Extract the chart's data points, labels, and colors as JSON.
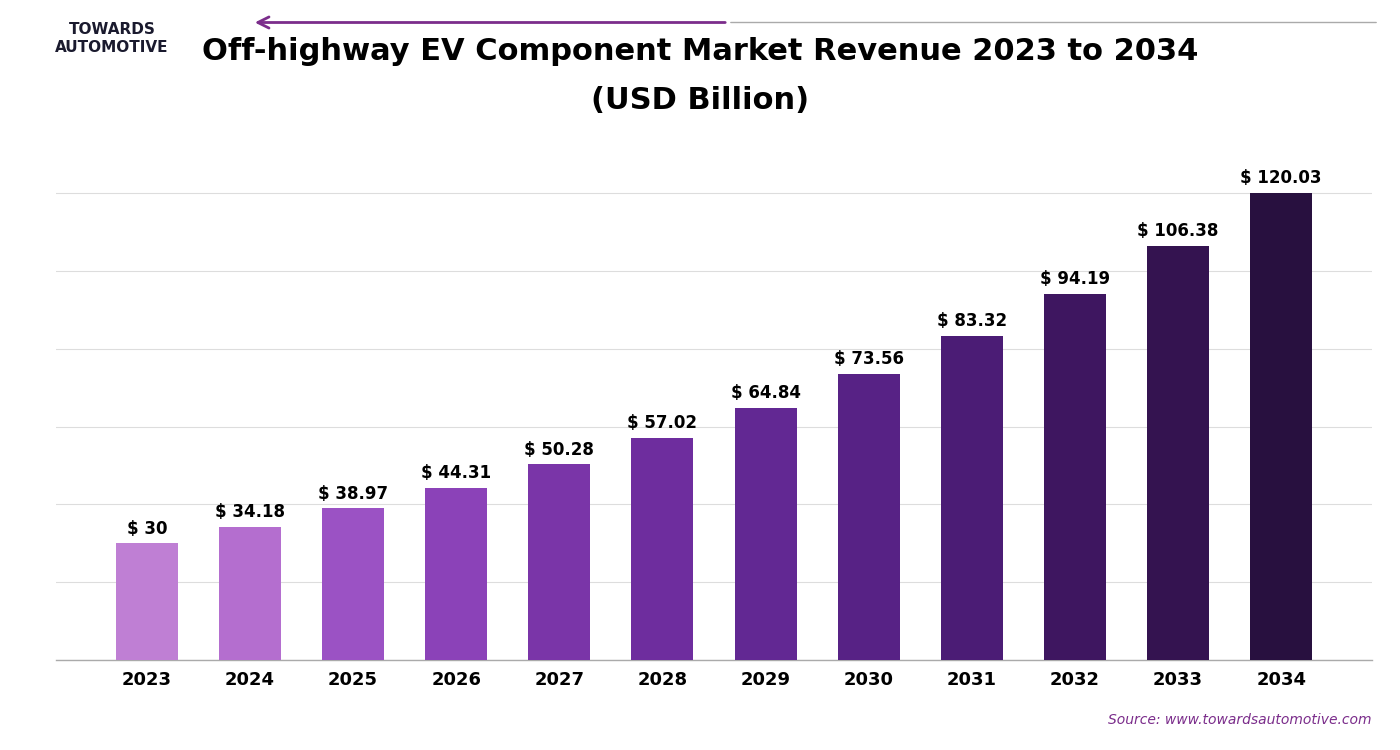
{
  "years": [
    2023,
    2024,
    2025,
    2026,
    2027,
    2028,
    2029,
    2030,
    2031,
    2032,
    2033,
    2034
  ],
  "values": [
    30,
    34.18,
    38.97,
    44.31,
    50.28,
    57.02,
    64.84,
    73.56,
    83.32,
    94.19,
    106.38,
    120.03
  ],
  "labels": [
    "$ 30",
    "$ 34.18",
    "$ 38.97",
    "$ 44.31",
    "$ 50.28",
    "$ 57.02",
    "$ 64.84",
    "$ 73.56",
    "$ 83.32",
    "$ 94.19",
    "$ 106.38",
    "$ 120.03"
  ],
  "bar_colors": [
    "#bf7fd4",
    "#b46ecf",
    "#9b52c4",
    "#8b42b8",
    "#7a35a8",
    "#6e2d9e",
    "#622893",
    "#572285",
    "#4b1c75",
    "#3e1660",
    "#341350",
    "#28103f"
  ],
  "title_line1": "Off-highway EV Component Market Revenue 2023 to 2034",
  "title_line2": "(USD Billion)",
  "title_fontsize": 22,
  "background_color": "#ffffff",
  "grid_color": "#dddddd",
  "source_text": "Source: www.towardsautomotive.com",
  "source_color": "#7b2d8b",
  "arrow_color": "#7b2d8b",
  "label_fontsize": 12,
  "tick_fontsize": 13,
  "ylim": [
    0,
    135
  ],
  "bar_width": 0.6
}
